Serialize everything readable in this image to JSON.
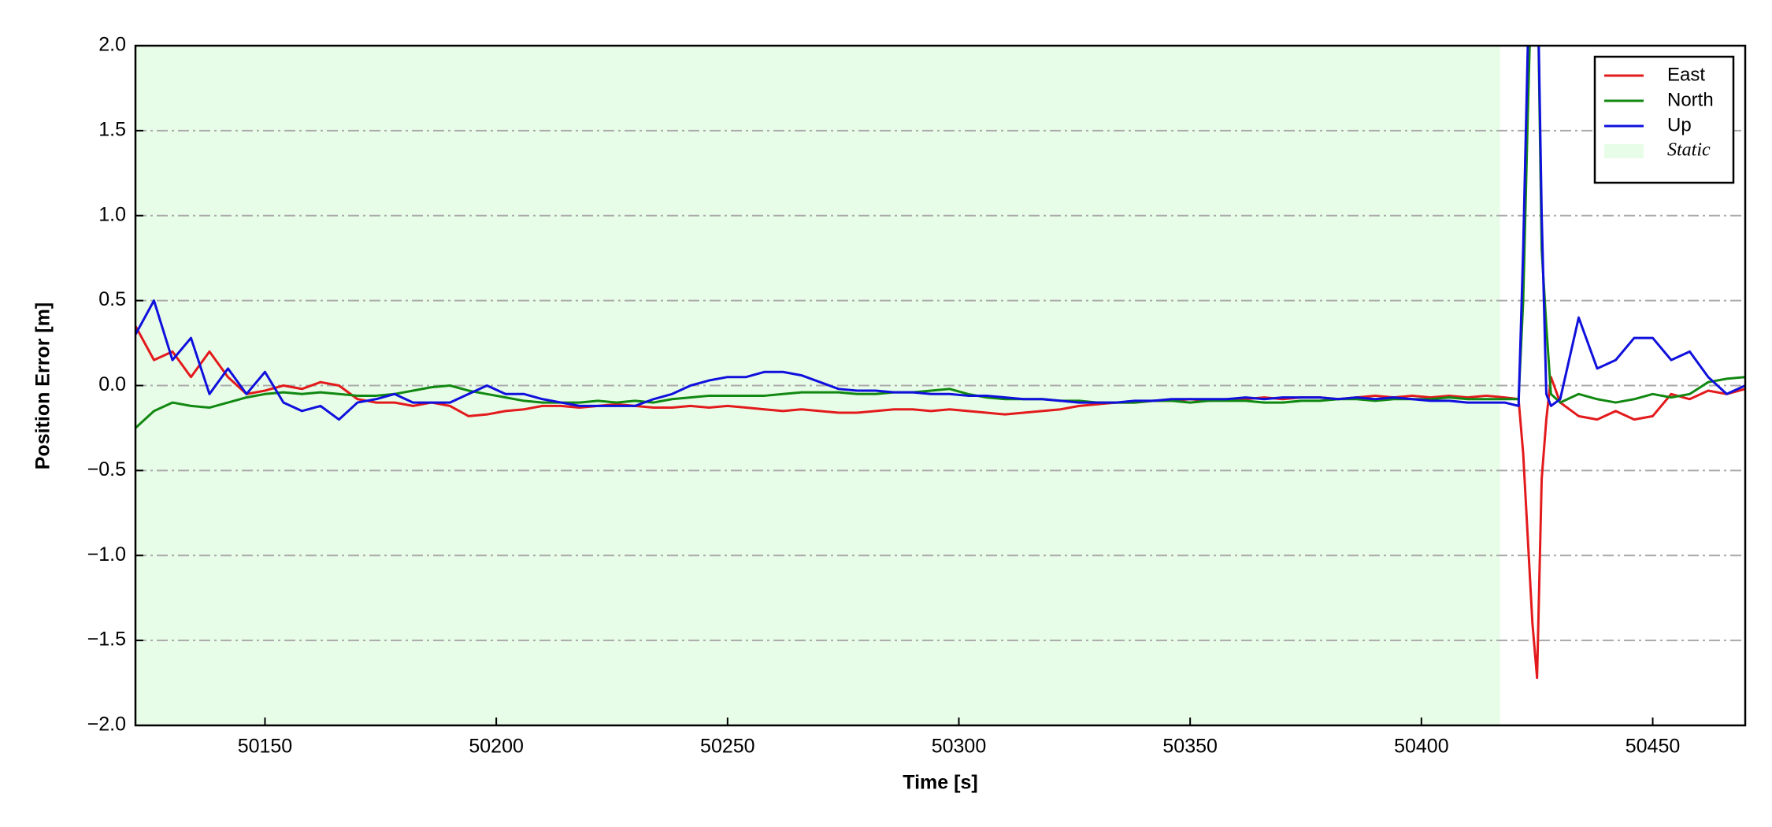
{
  "chart_data": {
    "type": "line",
    "xlabel": "Time [s]",
    "ylabel": "Position Error [m]",
    "xlim": [
      50122,
      50470
    ],
    "ylim": [
      -2,
      2
    ],
    "xticks": [
      50150,
      50200,
      50250,
      50300,
      50350,
      50400,
      50450
    ],
    "yticks": [
      {
        "value": -2,
        "label": "−2.0"
      },
      {
        "value": -1.5,
        "label": "−1.5"
      },
      {
        "value": -1,
        "label": "−1.0"
      },
      {
        "value": -0.5,
        "label": "−0.5"
      },
      {
        "value": 0,
        "label": "0.0"
      },
      0.5,
      {
        "value": 1,
        "label": "1.0"
      },
      1.5,
      {
        "value": 2,
        "label": "2.0"
      }
    ],
    "grid": true,
    "legend": "upper right",
    "shade": {
      "label": "Static",
      "x": [
        50122,
        50417
      ],
      "color": "#e8fde8"
    },
    "x": [
      50122,
      50126,
      50130,
      50134,
      50138,
      50142,
      50146,
      50150,
      50154,
      50158,
      50162,
      50166,
      50170,
      50174,
      50178,
      50182,
      50186,
      50190,
      50194,
      50198,
      50202,
      50206,
      50210,
      50214,
      50218,
      50222,
      50226,
      50230,
      50234,
      50238,
      50242,
      50246,
      50250,
      50254,
      50258,
      50262,
      50266,
      50270,
      50274,
      50278,
      50282,
      50286,
      50290,
      50294,
      50298,
      50302,
      50306,
      50310,
      50314,
      50318,
      50322,
      50326,
      50330,
      50334,
      50338,
      50342,
      50346,
      50350,
      50354,
      50358,
      50362,
      50366,
      50370,
      50374,
      50378,
      50382,
      50386,
      50390,
      50394,
      50398,
      50402,
      50406,
      50410,
      50414,
      50418,
      50421,
      50422,
      50423,
      50424,
      50425,
      50426,
      50427,
      50428,
      50430,
      50434,
      50438,
      50442,
      50446,
      50450,
      50454,
      50458,
      50462,
      50466,
      50470
    ],
    "series": [
      {
        "name": "East",
        "color": "#e31a1c",
        "values": [
          0.35,
          0.15,
          0.2,
          0.05,
          0.2,
          0.05,
          -0.05,
          -0.03,
          0.0,
          -0.02,
          0.02,
          0.0,
          -0.08,
          -0.1,
          -0.1,
          -0.12,
          -0.1,
          -0.12,
          -0.18,
          -0.17,
          -0.15,
          -0.14,
          -0.12,
          -0.12,
          -0.13,
          -0.12,
          -0.11,
          -0.12,
          -0.13,
          -0.13,
          -0.12,
          -0.13,
          -0.12,
          -0.13,
          -0.14,
          -0.15,
          -0.14,
          -0.15,
          -0.16,
          -0.16,
          -0.15,
          -0.14,
          -0.14,
          -0.15,
          -0.14,
          -0.15,
          -0.16,
          -0.17,
          -0.16,
          -0.15,
          -0.14,
          -0.12,
          -0.11,
          -0.1,
          -0.1,
          -0.09,
          -0.09,
          -0.08,
          -0.09,
          -0.08,
          -0.08,
          -0.07,
          -0.08,
          -0.07,
          -0.07,
          -0.08,
          -0.07,
          -0.06,
          -0.07,
          -0.06,
          -0.07,
          -0.06,
          -0.07,
          -0.06,
          -0.07,
          -0.08,
          -0.4,
          -0.9,
          -1.4,
          -1.72,
          -0.55,
          -0.2,
          0.05,
          -0.1,
          -0.18,
          -0.2,
          -0.15,
          -0.2,
          -0.18,
          -0.05,
          -0.08,
          -0.03,
          -0.05,
          -0.02
        ]
      },
      {
        "name": "North",
        "color": "#118811",
        "values": [
          -0.25,
          -0.15,
          -0.1,
          -0.12,
          -0.13,
          -0.1,
          -0.07,
          -0.05,
          -0.04,
          -0.05,
          -0.04,
          -0.05,
          -0.06,
          -0.06,
          -0.05,
          -0.03,
          -0.01,
          0.0,
          -0.03,
          -0.05,
          -0.07,
          -0.09,
          -0.1,
          -0.1,
          -0.1,
          -0.09,
          -0.1,
          -0.09,
          -0.1,
          -0.08,
          -0.07,
          -0.06,
          -0.06,
          -0.06,
          -0.06,
          -0.05,
          -0.04,
          -0.04,
          -0.04,
          -0.05,
          -0.05,
          -0.04,
          -0.04,
          -0.03,
          -0.02,
          -0.05,
          -0.07,
          -0.08,
          -0.08,
          -0.08,
          -0.09,
          -0.09,
          -0.1,
          -0.1,
          -0.1,
          -0.09,
          -0.09,
          -0.1,
          -0.09,
          -0.09,
          -0.09,
          -0.1,
          -0.1,
          -0.09,
          -0.09,
          -0.08,
          -0.08,
          -0.09,
          -0.08,
          -0.08,
          -0.08,
          -0.07,
          -0.08,
          -0.08,
          -0.08,
          -0.08,
          0.5,
          1.6,
          2.6,
          2.6,
          0.8,
          0.35,
          -0.05,
          -0.1,
          -0.05,
          -0.08,
          -0.1,
          -0.08,
          -0.05,
          -0.07,
          -0.05,
          0.02,
          0.04,
          0.05
        ]
      },
      {
        "name": "Up",
        "color": "#1010dd",
        "values": [
          0.3,
          0.5,
          0.15,
          0.28,
          -0.05,
          0.1,
          -0.05,
          0.08,
          -0.1,
          -0.15,
          -0.12,
          -0.2,
          -0.1,
          -0.08,
          -0.05,
          -0.1,
          -0.1,
          -0.1,
          -0.05,
          0.0,
          -0.05,
          -0.05,
          -0.08,
          -0.1,
          -0.12,
          -0.12,
          -0.12,
          -0.12,
          -0.08,
          -0.05,
          0.0,
          0.03,
          0.05,
          0.05,
          0.08,
          0.08,
          0.06,
          0.02,
          -0.02,
          -0.03,
          -0.03,
          -0.04,
          -0.04,
          -0.05,
          -0.05,
          -0.06,
          -0.06,
          -0.07,
          -0.08,
          -0.08,
          -0.09,
          -0.1,
          -0.1,
          -0.1,
          -0.09,
          -0.09,
          -0.08,
          -0.08,
          -0.08,
          -0.08,
          -0.07,
          -0.08,
          -0.07,
          -0.07,
          -0.07,
          -0.08,
          -0.07,
          -0.08,
          -0.07,
          -0.08,
          -0.09,
          -0.09,
          -0.1,
          -0.1,
          -0.1,
          -0.12,
          0.8,
          2.0,
          2.6,
          2.6,
          1.0,
          -0.05,
          -0.12,
          -0.08,
          0.4,
          0.1,
          0.15,
          0.28,
          0.28,
          0.15,
          0.2,
          0.05,
          -0.05,
          0.0
        ]
      }
    ]
  }
}
